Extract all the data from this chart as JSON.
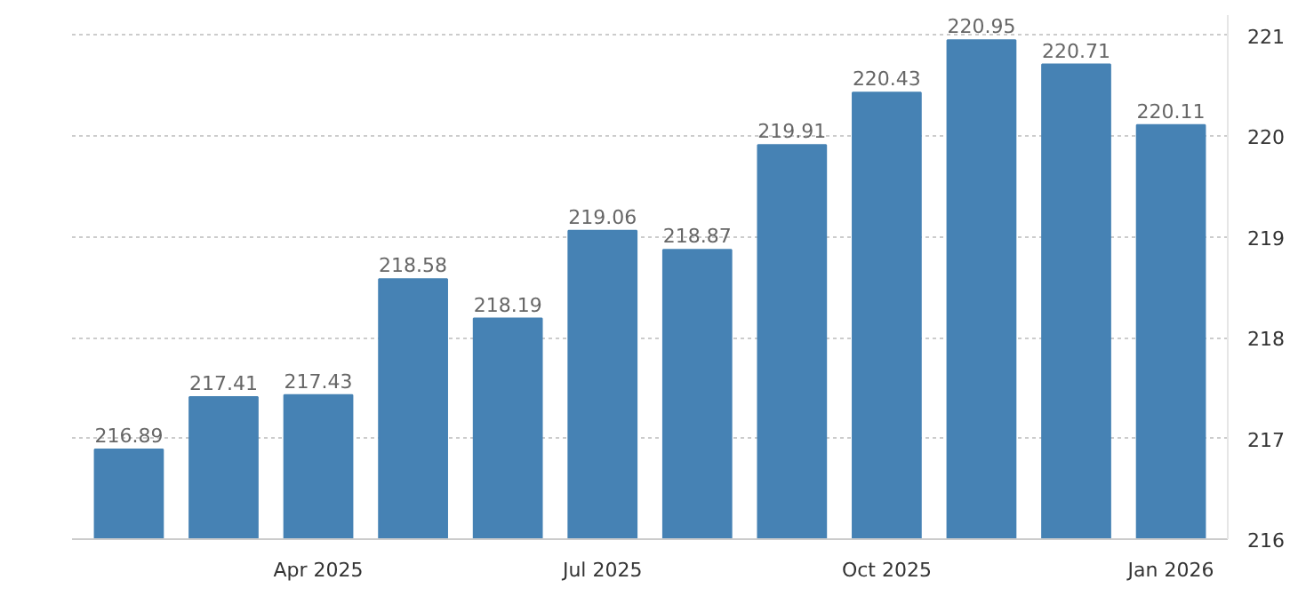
{
  "chart_data": {
    "type": "bar",
    "categories": [
      null,
      null,
      "Apr 2025",
      null,
      null,
      "Jul 2025",
      null,
      null,
      "Oct 2025",
      null,
      null,
      "Jan 2026"
    ],
    "values": [
      216.89,
      217.41,
      217.43,
      218.58,
      218.19,
      219.06,
      218.87,
      219.91,
      220.43,
      220.95,
      220.71,
      220.11
    ],
    "color": "#4682b4",
    "ylim": [
      216,
      221.2
    ],
    "yticks": [
      216,
      217,
      218,
      219,
      220,
      221
    ],
    "grid": "y",
    "data_labels": true
  }
}
